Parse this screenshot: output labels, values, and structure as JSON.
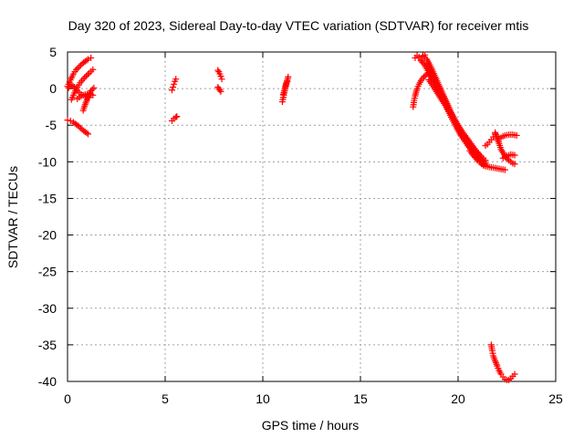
{
  "chart_data": {
    "type": "scatter",
    "title": "Day 320 of 2023, Sidereal Day-to-day VTEC variation (SDTVAR) for receiver mtis",
    "xlabel": "GPS time / hours",
    "ylabel": "SDTVAR / TECUs",
    "xlim": [
      0,
      25
    ],
    "ylim": [
      -40,
      5
    ],
    "xticks": [
      0,
      5,
      10,
      15,
      20,
      25
    ],
    "yticks": [
      5,
      0,
      -5,
      -10,
      -15,
      -20,
      -25,
      -30,
      -35,
      -40
    ],
    "xtick_labels": [
      "0",
      "5",
      "10",
      "15",
      "20",
      "25"
    ],
    "ytick_labels": [
      "5",
      "0",
      "-5",
      "-10",
      "-15",
      "-20",
      "-25",
      "-30",
      "-35",
      "-40"
    ],
    "grid": true,
    "legend": "none",
    "marker": "plus",
    "color": "#ff0000",
    "series": [
      {
        "segments": [
          {
            "x": [
              0.0,
              0.15,
              0.3,
              0.45,
              0.6,
              0.75,
              0.9,
              1.05,
              1.2
            ],
            "y": [
              0.3,
              1.2,
              2.0,
              2.6,
              3.0,
              3.4,
              3.7,
              4.0,
              4.2
            ]
          },
          {
            "x": [
              0.2,
              0.35,
              0.5,
              0.65,
              0.8,
              0.95,
              1.1,
              1.3
            ],
            "y": [
              -1.5,
              -0.6,
              0.2,
              0.8,
              1.3,
              1.7,
              2.1,
              2.6
            ]
          },
          {
            "x": [
              0.05,
              0.2,
              0.35,
              0.5,
              0.7,
              0.9,
              1.1
            ],
            "y": [
              0.1,
              0.5,
              0.2,
              -0.3,
              -0.8,
              -1.0,
              -1.2
            ]
          },
          {
            "x": [
              0.8,
              0.9,
              1.0,
              1.1,
              1.2,
              1.35
            ],
            "y": [
              -3.0,
              -2.2,
              -1.5,
              -0.8,
              -0.3,
              0.1
            ]
          },
          {
            "x": [
              0.5,
              0.7,
              0.9,
              1.1,
              1.3
            ],
            "y": [
              -1.4,
              -1.0,
              -0.8,
              -0.7,
              -0.9
            ]
          },
          {
            "x": [
              0.0,
              0.15,
              0.3,
              0.45,
              0.6,
              0.75,
              0.9,
              1.05
            ],
            "y": [
              -4.3,
              -4.4,
              -4.6,
              -4.9,
              -5.2,
              -5.6,
              -5.9,
              -6.2
            ]
          },
          {
            "x": [
              5.35,
              5.4,
              5.45,
              5.5,
              5.55
            ],
            "y": [
              -0.2,
              0.2,
              0.6,
              1.0,
              1.3
            ]
          },
          {
            "x": [
              5.35,
              5.45,
              5.55,
              5.6
            ],
            "y": [
              -4.4,
              -4.1,
              -3.9,
              -3.8
            ]
          },
          {
            "x": [
              7.7,
              7.75,
              7.8,
              7.85,
              7.9
            ],
            "y": [
              2.5,
              2.3,
              2.0,
              1.7,
              1.3
            ]
          },
          {
            "x": [
              7.7,
              7.75,
              7.8,
              7.85
            ],
            "y": [
              0.2,
              0.0,
              -0.2,
              -0.4
            ]
          },
          {
            "x": [
              11.0,
              11.05,
              11.1,
              11.15,
              11.2,
              11.25,
              11.3
            ],
            "y": [
              -1.8,
              -1.2,
              -0.6,
              0.0,
              0.6,
              1.1,
              1.6
            ]
          },
          {
            "x": [
              11.05,
              11.1,
              11.15,
              11.2,
              11.25
            ],
            "y": [
              -0.8,
              -0.3,
              0.2,
              0.7,
              1.0
            ]
          },
          {
            "x": [
              17.7,
              17.75,
              17.8,
              17.85,
              17.9,
              18.0,
              18.1,
              18.25,
              18.4
            ],
            "y": [
              -2.5,
              -1.6,
              -1.0,
              -0.5,
              0.0,
              0.6,
              1.1,
              1.6,
              2.0
            ]
          },
          {
            "x": [
              17.8,
              17.9,
              18.0,
              18.1,
              18.2,
              18.3
            ],
            "y": [
              4.2,
              4.5,
              4.3,
              4.0,
              4.4,
              4.6
            ]
          },
          {
            "x": [
              18.2,
              18.4,
              18.6,
              18.8,
              19.0,
              19.2,
              19.4,
              19.6,
              19.8,
              20.0,
              20.2,
              20.4,
              20.6,
              20.8,
              21.0,
              21.2,
              21.4
            ],
            "y": [
              4.5,
              4.0,
              3.0,
              1.8,
              0.6,
              -0.6,
              -1.8,
              -3.0,
              -4.0,
              -5.0,
              -6.0,
              -6.8,
              -7.6,
              -8.3,
              -9.0,
              -9.6,
              -10.2
            ]
          },
          {
            "x": [
              18.1,
              18.3,
              18.5,
              18.7,
              18.9,
              19.1,
              19.3,
              19.5,
              19.7,
              19.9,
              20.1,
              20.3,
              20.5,
              20.7,
              20.9,
              21.1,
              21.3
            ],
            "y": [
              3.8,
              3.2,
              2.2,
              1.2,
              0.2,
              -0.9,
              -2.0,
              -3.1,
              -4.2,
              -5.2,
              -6.2,
              -7.0,
              -7.8,
              -8.5,
              -9.2,
              -9.8,
              -10.5
            ]
          },
          {
            "x": [
              18.4,
              18.6,
              18.8,
              19.0,
              19.2,
              19.4,
              19.6,
              19.8,
              20.0,
              20.2,
              20.4,
              20.6,
              20.8,
              21.0,
              21.2,
              21.4
            ],
            "y": [
              3.0,
              2.0,
              1.0,
              0.0,
              -1.0,
              -2.0,
              -3.2,
              -4.4,
              -5.5,
              -6.4,
              -7.2,
              -8.0,
              -8.8,
              -9.4,
              -9.9,
              -10.5
            ]
          },
          {
            "x": [
              18.5,
              18.8,
              19.1,
              19.4,
              19.7,
              20.0,
              20.3,
              20.6,
              20.9,
              21.2,
              21.4
            ],
            "y": [
              1.2,
              0.0,
              -1.3,
              -2.5,
              -3.8,
              -5.0,
              -6.2,
              -7.3,
              -8.4,
              -9.3,
              -9.8
            ]
          },
          {
            "x": [
              20.6,
              20.8,
              21.0,
              21.2,
              21.4,
              21.6,
              21.8,
              22.0,
              22.2,
              22.4
            ],
            "y": [
              -8.5,
              -9.2,
              -9.8,
              -10.3,
              -10.6,
              -10.7,
              -10.8,
              -10.9,
              -11.0,
              -11.1
            ]
          },
          {
            "x": [
              21.4,
              21.5,
              21.6,
              21.7,
              21.8,
              21.9,
              22.0,
              22.1,
              22.2,
              22.3,
              22.4,
              22.6,
              22.8,
              23.0
            ],
            "y": [
              -7.8,
              -7.6,
              -7.3,
              -7.0,
              -6.6,
              -6.2,
              -6.5,
              -6.8,
              -6.7,
              -6.5,
              -6.4,
              -6.3,
              -6.3,
              -6.4
            ]
          },
          {
            "x": [
              21.9,
              22.0,
              22.1,
              22.2,
              22.4,
              22.6,
              22.8,
              22.9
            ],
            "y": [
              -6.0,
              -6.8,
              -7.5,
              -8.3,
              -9.2,
              -9.8,
              -10.2,
              -10.3
            ]
          },
          {
            "x": [
              22.3,
              22.5,
              22.7,
              22.9
            ],
            "y": [
              -9.5,
              -9.2,
              -9.0,
              -9.1
            ]
          },
          {
            "x": [
              21.7,
              21.75,
              21.8,
              21.9,
              22.0,
              22.1,
              22.2,
              22.3,
              22.4,
              22.5,
              22.6,
              22.7,
              22.8,
              22.9
            ],
            "y": [
              -35.0,
              -35.8,
              -36.5,
              -37.2,
              -37.9,
              -38.5,
              -39.0,
              -39.4,
              -39.7,
              -39.8,
              -39.8,
              -39.6,
              -39.3,
              -39.0
            ]
          }
        ]
      }
    ]
  }
}
